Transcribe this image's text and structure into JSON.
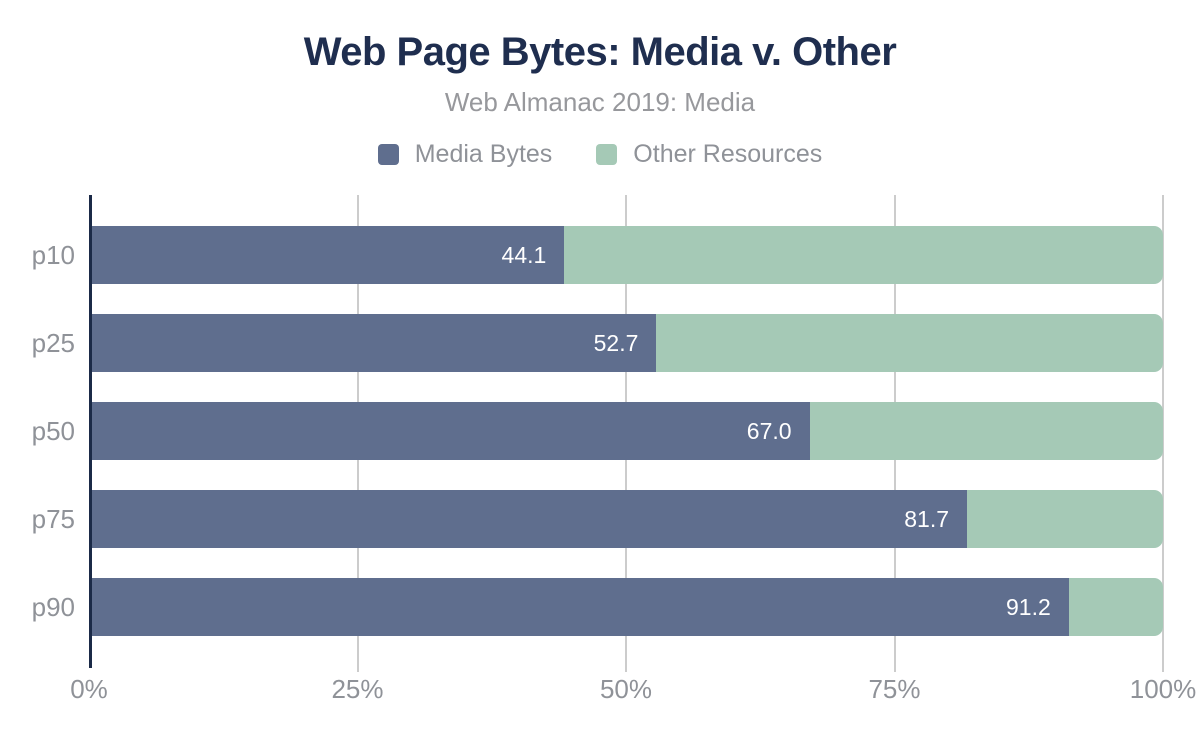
{
  "header": {
    "title": "Web Page Bytes: Media v. Other",
    "subtitle": "Web Almanac 2019: Media"
  },
  "legend": {
    "items": [
      {
        "label": "Media Bytes",
        "color": "#5f6e8e"
      },
      {
        "label": "Other Resources",
        "color": "#a5c9b6"
      }
    ]
  },
  "colors": {
    "title": "#1f2e4f",
    "axis_line": "#1b2a47",
    "gridline": "#cccccc",
    "tick_label": "#8f9298",
    "value_label": "#ffffff",
    "media_bar": "#5f6e8e",
    "other_bar": "#a5c9b6",
    "background": "#ffffff"
  },
  "chart_data": {
    "type": "bar",
    "orientation": "horizontal",
    "stacked": true,
    "title": "Web Page Bytes: Media v. Other",
    "subtitle": "Web Almanac 2019: Media",
    "categories": [
      "p10",
      "p25",
      "p50",
      "p75",
      "p90"
    ],
    "series": [
      {
        "name": "Media Bytes",
        "color": "#5f6e8e",
        "values": [
          44.1,
          52.7,
          67.0,
          81.7,
          91.2
        ]
      },
      {
        "name": "Other Resources",
        "color": "#a5c9b6",
        "values": [
          55.9,
          47.3,
          33.0,
          18.3,
          8.8
        ]
      }
    ],
    "value_labels": [
      "44.1",
      "52.7",
      "67.0",
      "81.7",
      "91.2"
    ],
    "x_ticks": [
      {
        "label": "0%",
        "value": 0
      },
      {
        "label": "25%",
        "value": 25
      },
      {
        "label": "50%",
        "value": 50
      },
      {
        "label": "75%",
        "value": 75
      },
      {
        "label": "100%",
        "value": 100
      }
    ],
    "xlim": [
      0,
      100
    ],
    "grid": "vertical",
    "legend_position": "top"
  }
}
